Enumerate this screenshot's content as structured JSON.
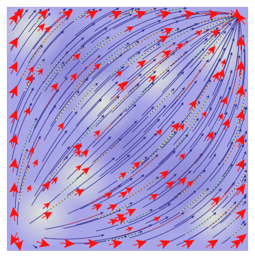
{
  "figure": {
    "kind": "vector field streamline plot",
    "background_colors": [
      "#e2e6d8",
      "#a9a6e8",
      "#8a86d6"
    ],
    "streamline_color": "#2f2f8f",
    "highlight_colors": [
      "#ff3a1e",
      "#ffb23a",
      "#e8f04a",
      "#8fe07a"
    ],
    "arrow_color": "#ff1010",
    "sources": [
      {
        "name": "top-right-sink",
        "u": 0.96,
        "v": 0.04
      },
      {
        "name": "bottom-left-source",
        "u": 0.05,
        "v": 0.92
      }
    ]
  }
}
